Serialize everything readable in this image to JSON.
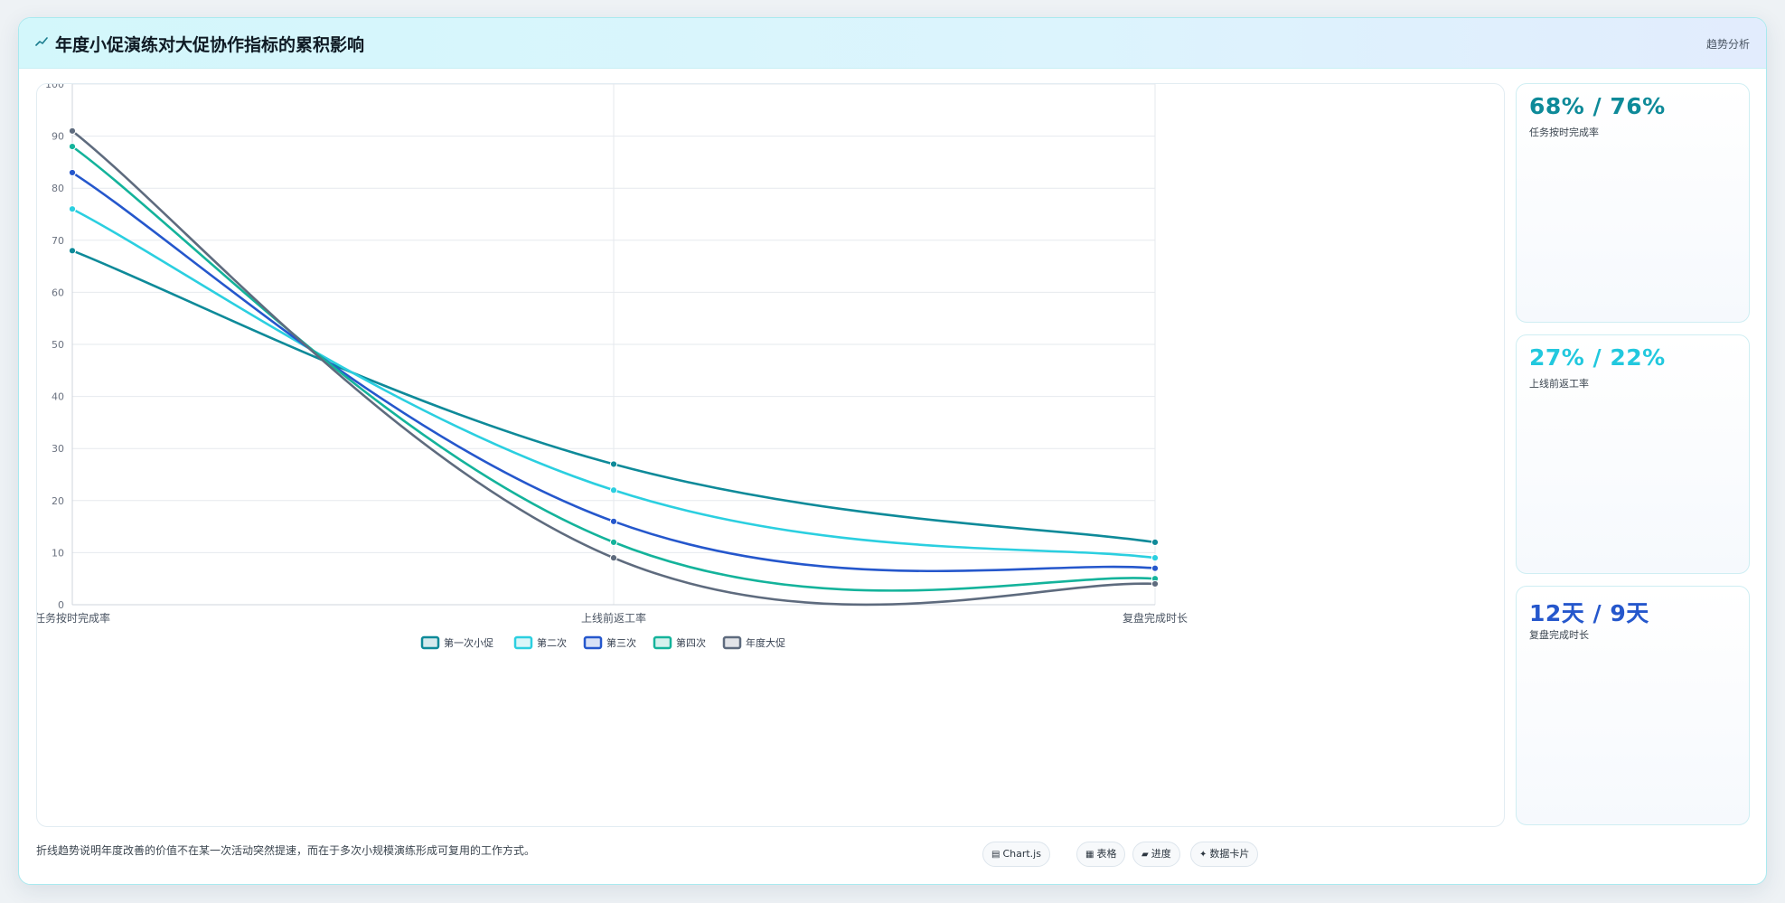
{
  "header": {
    "title": "年度小促演练对大促协作指标的累积影响",
    "tag": "趋势分析"
  },
  "kpis": [
    {
      "value": "68% / 76%",
      "label": "任务按时完成率",
      "color": "#0e8a99"
    },
    {
      "value": "27% / 22%",
      "label": "上线前返工率",
      "color": "#22c8de"
    },
    {
      "value": "12天 / 9天",
      "label": "复盘完成时长",
      "color": "#2557cc"
    }
  ],
  "footer": {
    "note": "折线趋势说明年度改善的价值不在某一次活动突然提速，而在于多次小规模演练形成可复用的工作方式。",
    "chips": [
      {
        "icon": "chart-icon",
        "glyph": "▤",
        "label": "Chart.js"
      },
      {
        "icon": "table-icon",
        "glyph": "▦",
        "label": "表格"
      },
      {
        "icon": "progress-icon",
        "glyph": "▰",
        "label": "进度"
      },
      {
        "icon": "card-icon",
        "glyph": "✦",
        "label": "数据卡片"
      }
    ]
  },
  "chart_data": {
    "type": "line",
    "categories": [
      "任务按时完成率",
      "上线前返工率",
      "复盘完成时长"
    ],
    "ylim": [
      0,
      100
    ],
    "yticks": [
      0,
      10,
      20,
      30,
      40,
      50,
      60,
      70,
      80,
      90,
      100
    ],
    "grid": true,
    "legend_position": "bottom",
    "series": [
      {
        "name": "第一次小促",
        "values": [
          68,
          27,
          12
        ],
        "color": "#0e8a99"
      },
      {
        "name": "第二次",
        "values": [
          76,
          22,
          9
        ],
        "color": "#2bcfe0"
      },
      {
        "name": "第三次",
        "values": [
          83,
          16,
          7
        ],
        "color": "#2557cc"
      },
      {
        "name": "第四次",
        "values": [
          88,
          12,
          5
        ],
        "color": "#14b39b"
      },
      {
        "name": "年度大促",
        "values": [
          91,
          9,
          4
        ],
        "color": "#5e6b7e"
      }
    ]
  }
}
